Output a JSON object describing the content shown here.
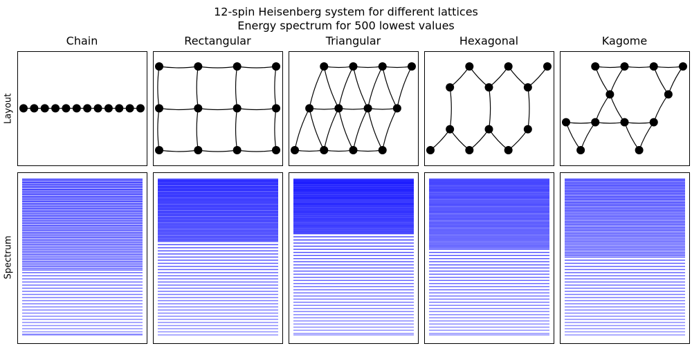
{
  "title": {
    "line1": "12-spin Heisenberg system for different lattices",
    "line2": "Energy spectrum for 500 lowest values"
  },
  "row_labels": {
    "layout": "Layout",
    "spectrum": "Spectrum"
  },
  "lattices": [
    {
      "name": "Chain",
      "nodes": [
        [
          0,
          0
        ],
        [
          1,
          0
        ],
        [
          2,
          0
        ],
        [
          3,
          0
        ],
        [
          4,
          0
        ],
        [
          5,
          0
        ],
        [
          6,
          0
        ],
        [
          7,
          0
        ],
        [
          8,
          0
        ],
        [
          9,
          0
        ],
        [
          10,
          0
        ],
        [
          11,
          0
        ]
      ],
      "edges": [
        [
          0,
          1
        ],
        [
          1,
          2
        ],
        [
          2,
          3
        ],
        [
          3,
          4
        ],
        [
          4,
          5
        ],
        [
          5,
          6
        ],
        [
          6,
          7
        ],
        [
          7,
          8
        ],
        [
          8,
          9
        ],
        [
          9,
          10
        ],
        [
          10,
          11
        ]
      ],
      "spectrum": [
        0.0,
        0.011,
        0.022,
        0.033,
        0.044,
        0.055,
        0.066,
        0.077,
        0.088,
        0.099,
        0.11,
        0.121,
        0.132,
        0.143,
        0.154,
        0.165,
        0.176,
        0.187,
        0.198,
        0.209,
        0.22,
        0.231,
        0.242,
        0.253,
        0.264,
        0.275,
        0.286,
        0.297,
        0.308,
        0.319,
        0.33,
        0.341,
        0.352,
        0.363,
        0.374,
        0.385,
        0.396,
        0.407,
        0.418,
        0.429,
        0.44,
        0.451,
        0.462,
        0.473,
        0.484,
        0.495,
        0.506,
        0.517,
        0.528,
        0.539,
        0.55,
        0.561,
        0.572,
        0.583,
        0.6,
        0.62,
        0.64,
        0.66,
        0.68,
        0.7,
        0.72,
        0.74,
        0.76,
        0.78,
        0.8,
        0.82,
        0.84,
        0.86,
        0.88,
        0.9,
        0.92,
        0.94,
        0.96,
        0.98,
        0.995,
        1.0
      ]
    },
    {
      "name": "Rectangular",
      "nodes": [
        [
          0,
          0
        ],
        [
          1,
          0
        ],
        [
          2,
          0
        ],
        [
          3,
          0
        ],
        [
          0,
          1
        ],
        [
          1,
          1
        ],
        [
          2,
          1
        ],
        [
          3,
          1
        ],
        [
          0,
          2
        ],
        [
          1,
          2
        ],
        [
          2,
          2
        ],
        [
          3,
          2
        ]
      ],
      "edges": [
        [
          0,
          1
        ],
        [
          1,
          2
        ],
        [
          2,
          3
        ],
        [
          4,
          5
        ],
        [
          5,
          6
        ],
        [
          6,
          7
        ],
        [
          8,
          9
        ],
        [
          9,
          10
        ],
        [
          10,
          11
        ],
        [
          0,
          4
        ],
        [
          1,
          5
        ],
        [
          2,
          6
        ],
        [
          3,
          7
        ],
        [
          4,
          8
        ],
        [
          5,
          9
        ],
        [
          6,
          10
        ],
        [
          7,
          11
        ]
      ],
      "spectrum": [
        0.0,
        0.008,
        0.016,
        0.024,
        0.032,
        0.04,
        0.048,
        0.056,
        0.064,
        0.072,
        0.08,
        0.088,
        0.096,
        0.104,
        0.112,
        0.12,
        0.128,
        0.136,
        0.144,
        0.152,
        0.16,
        0.168,
        0.176,
        0.184,
        0.192,
        0.2,
        0.208,
        0.216,
        0.224,
        0.232,
        0.24,
        0.248,
        0.256,
        0.264,
        0.272,
        0.28,
        0.288,
        0.296,
        0.304,
        0.312,
        0.32,
        0.328,
        0.336,
        0.344,
        0.352,
        0.36,
        0.368,
        0.376,
        0.384,
        0.392,
        0.4,
        0.42,
        0.44,
        0.46,
        0.48,
        0.5,
        0.52,
        0.54,
        0.56,
        0.58,
        0.6,
        0.62,
        0.64,
        0.66,
        0.68,
        0.7,
        0.72,
        0.74,
        0.76,
        0.78,
        0.8,
        0.82,
        0.84,
        0.86,
        0.88,
        0.9,
        0.92,
        0.94,
        0.96,
        0.98,
        1.0
      ]
    },
    {
      "name": "Triangular",
      "nodes": [
        [
          1,
          0
        ],
        [
          2,
          0
        ],
        [
          3,
          0
        ],
        [
          4,
          0
        ],
        [
          0.5,
          1
        ],
        [
          1.5,
          1
        ],
        [
          2.5,
          1
        ],
        [
          3.5,
          1
        ],
        [
          0,
          2
        ],
        [
          1,
          2
        ],
        [
          2,
          2
        ],
        [
          3,
          2
        ]
      ],
      "edges": [
        [
          0,
          1
        ],
        [
          1,
          2
        ],
        [
          2,
          3
        ],
        [
          4,
          5
        ],
        [
          5,
          6
        ],
        [
          6,
          7
        ],
        [
          8,
          9
        ],
        [
          9,
          10
        ],
        [
          10,
          11
        ],
        [
          0,
          4
        ],
        [
          0,
          5
        ],
        [
          1,
          5
        ],
        [
          1,
          6
        ],
        [
          2,
          6
        ],
        [
          2,
          7
        ],
        [
          3,
          7
        ],
        [
          4,
          8
        ],
        [
          4,
          9
        ],
        [
          5,
          9
        ],
        [
          5,
          10
        ],
        [
          6,
          10
        ],
        [
          6,
          11
        ],
        [
          7,
          11
        ]
      ],
      "spectrum": [
        0.0,
        0.007,
        0.014,
        0.021,
        0.028,
        0.035,
        0.042,
        0.049,
        0.056,
        0.063,
        0.07,
        0.077,
        0.084,
        0.091,
        0.098,
        0.105,
        0.112,
        0.119,
        0.126,
        0.133,
        0.14,
        0.147,
        0.154,
        0.161,
        0.168,
        0.175,
        0.182,
        0.189,
        0.196,
        0.203,
        0.21,
        0.217,
        0.224,
        0.231,
        0.238,
        0.245,
        0.252,
        0.259,
        0.266,
        0.273,
        0.28,
        0.287,
        0.294,
        0.301,
        0.308,
        0.315,
        0.322,
        0.329,
        0.336,
        0.343,
        0.35,
        0.37,
        0.39,
        0.41,
        0.43,
        0.45,
        0.47,
        0.49,
        0.51,
        0.53,
        0.55,
        0.57,
        0.59,
        0.61,
        0.63,
        0.65,
        0.67,
        0.69,
        0.71,
        0.73,
        0.75,
        0.77,
        0.79,
        0.81,
        0.83,
        0.85,
        0.87,
        0.89,
        0.91,
        0.93,
        0.95,
        0.97,
        0.99,
        1.0
      ]
    },
    {
      "name": "Hexagonal",
      "nodes": [
        [
          0,
          3
        ],
        [
          1,
          2.5
        ],
        [
          2,
          3
        ],
        [
          3,
          2.5
        ],
        [
          4,
          3
        ],
        [
          5,
          2.5
        ],
        [
          1,
          1.5
        ],
        [
          2,
          1
        ],
        [
          3,
          1.5
        ],
        [
          4,
          1
        ],
        [
          5,
          1.5
        ],
        [
          6,
          1
        ]
      ],
      "edges": [
        [
          0,
          1
        ],
        [
          1,
          2
        ],
        [
          2,
          3
        ],
        [
          3,
          4
        ],
        [
          4,
          5
        ],
        [
          1,
          6
        ],
        [
          3,
          8
        ],
        [
          5,
          10
        ],
        [
          6,
          7
        ],
        [
          7,
          8
        ],
        [
          8,
          9
        ],
        [
          9,
          10
        ],
        [
          10,
          11
        ]
      ],
      "spectrum": [
        0.0,
        0.009,
        0.018,
        0.027,
        0.036,
        0.045,
        0.054,
        0.063,
        0.072,
        0.081,
        0.09,
        0.099,
        0.108,
        0.117,
        0.126,
        0.135,
        0.144,
        0.153,
        0.162,
        0.171,
        0.18,
        0.189,
        0.198,
        0.207,
        0.216,
        0.225,
        0.234,
        0.243,
        0.252,
        0.261,
        0.27,
        0.279,
        0.288,
        0.297,
        0.306,
        0.315,
        0.324,
        0.333,
        0.342,
        0.351,
        0.36,
        0.369,
        0.378,
        0.387,
        0.396,
        0.405,
        0.414,
        0.423,
        0.432,
        0.441,
        0.45,
        0.47,
        0.49,
        0.51,
        0.53,
        0.55,
        0.57,
        0.59,
        0.61,
        0.63,
        0.65,
        0.67,
        0.69,
        0.71,
        0.73,
        0.75,
        0.77,
        0.79,
        0.81,
        0.83,
        0.85,
        0.87,
        0.89,
        0.91,
        0.93,
        0.95,
        0.97,
        0.99,
        1.0
      ]
    },
    {
      "name": "Kagome",
      "nodes": [
        [
          1,
          0
        ],
        [
          2,
          0
        ],
        [
          3,
          0
        ],
        [
          4,
          0
        ],
        [
          1.5,
          1
        ],
        [
          3.5,
          1
        ],
        [
          0,
          2
        ],
        [
          1,
          2
        ],
        [
          2,
          2
        ],
        [
          3,
          2
        ],
        [
          0.5,
          3
        ],
        [
          2.5,
          3
        ]
      ],
      "edges": [
        [
          0,
          1
        ],
        [
          1,
          2
        ],
        [
          2,
          3
        ],
        [
          0,
          4
        ],
        [
          1,
          4
        ],
        [
          2,
          5
        ],
        [
          3,
          5
        ],
        [
          4,
          7
        ],
        [
          4,
          8
        ],
        [
          5,
          9
        ],
        [
          6,
          7
        ],
        [
          7,
          8
        ],
        [
          8,
          9
        ],
        [
          6,
          10
        ],
        [
          7,
          10
        ],
        [
          8,
          11
        ],
        [
          9,
          11
        ]
      ],
      "spectrum": [
        0.0,
        0.01,
        0.02,
        0.03,
        0.04,
        0.05,
        0.06,
        0.07,
        0.08,
        0.09,
        0.1,
        0.11,
        0.12,
        0.13,
        0.14,
        0.15,
        0.16,
        0.17,
        0.18,
        0.19,
        0.2,
        0.21,
        0.22,
        0.23,
        0.24,
        0.25,
        0.26,
        0.27,
        0.28,
        0.29,
        0.3,
        0.31,
        0.32,
        0.33,
        0.34,
        0.35,
        0.36,
        0.37,
        0.38,
        0.39,
        0.4,
        0.41,
        0.42,
        0.43,
        0.44,
        0.45,
        0.46,
        0.47,
        0.48,
        0.49,
        0.5,
        0.52,
        0.54,
        0.56,
        0.58,
        0.6,
        0.62,
        0.64,
        0.66,
        0.68,
        0.7,
        0.72,
        0.74,
        0.76,
        0.78,
        0.8,
        0.82,
        0.84,
        0.86,
        0.88,
        0.9,
        0.92,
        0.94,
        0.96,
        0.98,
        1.0
      ]
    }
  ]
}
